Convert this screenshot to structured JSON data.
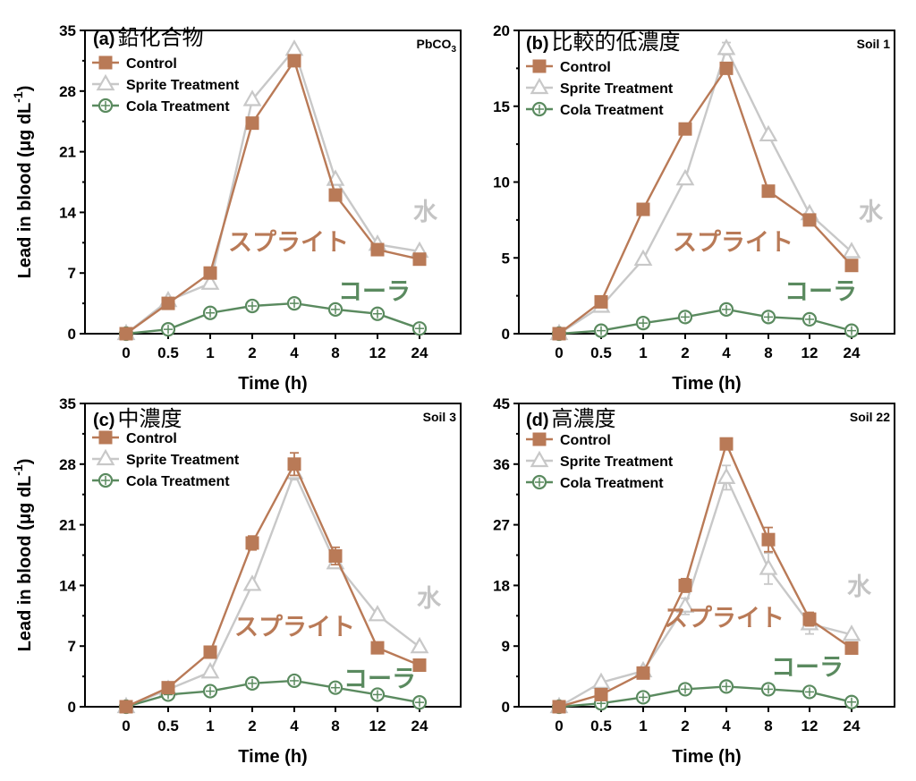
{
  "colors": {
    "control": "#b97a57",
    "sprite": "#c8c8c8",
    "cola": "#5a8a5f",
    "annot_water": "#c4c4c4"
  },
  "chart_data": [
    {
      "type": "line",
      "panel": "(a)",
      "title": "鉛化合物",
      "tag": "PbCO",
      "tag_sub": "3",
      "xlabel": "Time (h)",
      "ylabel": "Lead in blood (μg dL",
      "ylabel_sup": "-1",
      "ylabel_close": ")",
      "categories": [
        "0",
        "0.5",
        "1",
        "2",
        "4",
        "8",
        "12",
        "24"
      ],
      "ylim": [
        0,
        35
      ],
      "yticks": [
        0,
        7,
        14,
        21,
        28,
        35
      ],
      "legend_position": "top-left",
      "series": [
        {
          "name": "Control",
          "marker": "square",
          "values": [
            0,
            3.5,
            7,
            24.3,
            31.5,
            16,
            9.7,
            8.6
          ],
          "err": [
            0,
            0,
            0,
            0,
            0,
            0,
            0,
            0
          ]
        },
        {
          "name": "Sprite Treatment",
          "marker": "triangle",
          "values": [
            0,
            3.8,
            5.8,
            27,
            32.8,
            17.8,
            10.3,
            9.5
          ],
          "err": [
            0,
            0,
            0,
            0,
            0,
            0,
            0,
            0
          ]
        },
        {
          "name": "Cola Treatment",
          "marker": "circle",
          "values": [
            0,
            0.5,
            2.4,
            3.2,
            3.5,
            2.8,
            2.3,
            0.6
          ],
          "err": [
            0,
            0,
            0,
            0,
            0,
            0,
            0,
            0
          ]
        }
      ],
      "annotations": [
        {
          "text": "水",
          "series": "sprite"
        },
        {
          "text": "スプライト",
          "series": "control"
        },
        {
          "text": "コーラ",
          "series": "cola"
        }
      ]
    },
    {
      "type": "line",
      "panel": "(b)",
      "title": "比較的低濃度",
      "tag": "Soil 1",
      "tag_sub": "",
      "xlabel": "Time (h)",
      "ylabel": "",
      "ylabel_sup": "",
      "ylabel_close": "",
      "categories": [
        "0",
        "0.5",
        "1",
        "2",
        "4",
        "8",
        "12",
        "24"
      ],
      "ylim": [
        0,
        20
      ],
      "yticks": [
        0,
        5,
        10,
        15,
        20
      ],
      "legend_position": "top-left",
      "series": [
        {
          "name": "Control",
          "marker": "square",
          "values": [
            0,
            2.1,
            8.2,
            13.5,
            17.5,
            9.4,
            7.5,
            4.5
          ],
          "err": [
            0,
            0,
            0,
            0,
            0.3,
            0,
            0,
            0
          ]
        },
        {
          "name": "Sprite Treatment",
          "marker": "triangle",
          "values": [
            0,
            1.8,
            4.9,
            10.2,
            18.8,
            13.1,
            7.9,
            5.4
          ],
          "err": [
            0,
            0,
            0,
            0,
            0.4,
            0,
            0,
            0
          ]
        },
        {
          "name": "Cola Treatment",
          "marker": "circle",
          "values": [
            0,
            0.2,
            0.7,
            1.1,
            1.6,
            1.1,
            0.95,
            0.2
          ],
          "err": [
            0,
            0,
            0,
            0,
            0,
            0,
            0,
            0
          ]
        }
      ],
      "annotations": [
        {
          "text": "水",
          "series": "sprite"
        },
        {
          "text": "スプライト",
          "series": "control"
        },
        {
          "text": "コーラ",
          "series": "cola"
        }
      ]
    },
    {
      "type": "line",
      "panel": "(c)",
      "title": "中濃度",
      "tag": "Soil 3",
      "tag_sub": "",
      "xlabel": "Time (h)",
      "ylabel": "Lead in blood (μg dL",
      "ylabel_sup": "-1",
      "ylabel_close": ")",
      "categories": [
        "0",
        "0.5",
        "1",
        "2",
        "4",
        "8",
        "12",
        "24"
      ],
      "ylim": [
        0,
        35
      ],
      "yticks": [
        0,
        7,
        14,
        21,
        28,
        35
      ],
      "legend_position": "top-left",
      "series": [
        {
          "name": "Control",
          "marker": "square",
          "values": [
            0,
            2.2,
            6.3,
            18.9,
            28,
            17.4,
            6.8,
            4.8
          ],
          "err": [
            0,
            0.5,
            0.4,
            0.8,
            1.3,
            1.0,
            0,
            0
          ]
        },
        {
          "name": "Sprite Treatment",
          "marker": "triangle",
          "values": [
            0,
            2.0,
            4.0,
            14.1,
            27,
            16.6,
            10.6,
            6.9
          ],
          "err": [
            0,
            0,
            0,
            0,
            0.8,
            0.6,
            0,
            0
          ]
        },
        {
          "name": "Cola Treatment",
          "marker": "circle",
          "values": [
            0,
            1.4,
            1.8,
            2.7,
            3.0,
            2.2,
            1.4,
            0.5
          ],
          "err": [
            0,
            0,
            0,
            0,
            0,
            0,
            0,
            0
          ]
        }
      ],
      "annotations": [
        {
          "text": "水",
          "series": "sprite"
        },
        {
          "text": "スプライト",
          "series": "control"
        },
        {
          "text": "コーラ",
          "series": "cola"
        }
      ]
    },
    {
      "type": "line",
      "panel": "(d)",
      "title": "高濃度",
      "tag": "Soil 22",
      "tag_sub": "",
      "xlabel": "Time (h)",
      "ylabel": "",
      "ylabel_sup": "",
      "ylabel_close": "",
      "categories": [
        "0",
        "0.5",
        "1",
        "2",
        "4",
        "8",
        "12",
        "24"
      ],
      "ylim": [
        0,
        45
      ],
      "yticks": [
        0,
        9,
        18,
        27,
        36,
        45
      ],
      "legend_position": "top-left",
      "series": [
        {
          "name": "Control",
          "marker": "square",
          "values": [
            0,
            1.8,
            5.0,
            18.0,
            39.0,
            24.8,
            13.0,
            8.7
          ],
          "err": [
            0,
            0,
            0,
            1.0,
            0.5,
            1.8,
            1.0,
            0
          ]
        },
        {
          "name": "Sprite Treatment",
          "marker": "triangle",
          "values": [
            0,
            3.6,
            5.3,
            14.9,
            34.0,
            20.5,
            12.3,
            10.7
          ],
          "err": [
            0,
            0,
            0,
            1.2,
            1.8,
            2.3,
            1.5,
            0
          ]
        },
        {
          "name": "Cola Treatment",
          "marker": "circle",
          "values": [
            0,
            0.5,
            1.4,
            2.6,
            3.0,
            2.6,
            2.2,
            0.7
          ],
          "err": [
            0,
            0,
            0,
            0,
            0,
            0,
            0,
            0
          ]
        }
      ],
      "annotations": [
        {
          "text": "水",
          "series": "sprite"
        },
        {
          "text": "スプライト",
          "series": "control"
        },
        {
          "text": "コーラ",
          "series": "cola"
        }
      ]
    }
  ]
}
